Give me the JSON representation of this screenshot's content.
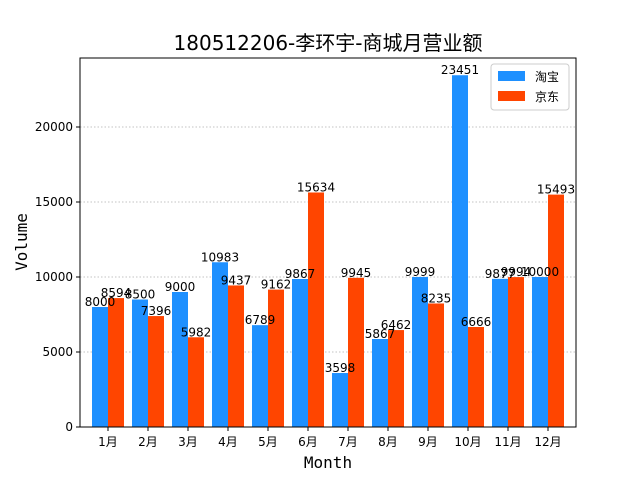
{
  "chart_data": {
    "type": "bar",
    "title": "180512206-李环宇-商城月营业额",
    "xlabel": "Month",
    "ylabel": "Volume",
    "categories": [
      "1月",
      "2月",
      "3月",
      "4月",
      "5月",
      "6月",
      "7月",
      "8月",
      "9月",
      "10月",
      "11月",
      "12月"
    ],
    "series": [
      {
        "name": "淘宝",
        "color": "#1e90ff",
        "values": [
          8000,
          8500,
          9000,
          10983,
          6789,
          9867,
          3598,
          5867,
          9999,
          23451,
          9877,
          10000
        ]
      },
      {
        "name": "京东",
        "color": "#ff4500",
        "values": [
          8594,
          7396,
          5982,
          9437,
          9162,
          15634,
          9945,
          6462,
          8235,
          6666,
          9994,
          15493
        ]
      }
    ],
    "ylim": [
      0,
      24600
    ],
    "yticks": [
      0,
      5000,
      10000,
      15000,
      20000
    ],
    "grid": "y-dotted",
    "legend_position": "top-right"
  }
}
